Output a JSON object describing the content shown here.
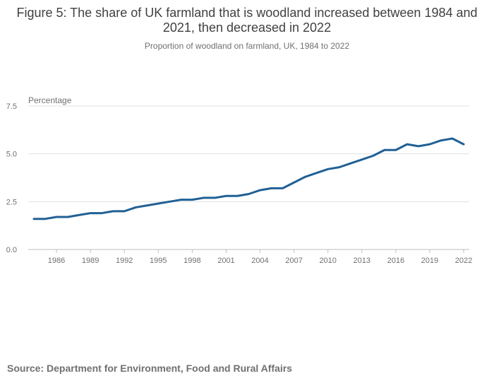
{
  "title": "Figure 5: The share of UK farmland that is woodland increased between 1984 and 2021, then decreased in 2022",
  "subtitle": "Proportion of woodland on farmland, UK, 1984 to 2022",
  "source": "Source: Department for Environment, Food and Rural Affairs",
  "colors": {
    "line": "#206095",
    "grid": "#e0e0e0",
    "axis": "#bebebe",
    "tick_text": "#707071"
  },
  "chart_data": {
    "type": "line",
    "title": "Figure 5: The share of UK farmland that is woodland increased between 1984 and 2021, then decreased in 2022",
    "subtitle": "Proportion of woodland on farmland, UK, 1984 to 2022",
    "ylabel": "Percentage",
    "xlabel": "",
    "ylim": [
      0,
      7.5
    ],
    "xlim": [
      1984,
      2022
    ],
    "yticks": [
      "0.0",
      "2.5",
      "5.0",
      "7.5"
    ],
    "xticks": [
      1986,
      1989,
      1992,
      1995,
      1998,
      2001,
      2004,
      2007,
      2010,
      2013,
      2016,
      2019,
      2022
    ],
    "grid": true,
    "series": [
      {
        "name": "Proportion of woodland on farmland",
        "x": [
          1984,
          1985,
          1986,
          1987,
          1988,
          1989,
          1990,
          1991,
          1992,
          1993,
          1994,
          1995,
          1996,
          1997,
          1998,
          1999,
          2000,
          2001,
          2002,
          2003,
          2004,
          2005,
          2006,
          2007,
          2008,
          2009,
          2010,
          2011,
          2012,
          2013,
          2014,
          2015,
          2016,
          2017,
          2018,
          2019,
          2020,
          2021,
          2022
        ],
        "values": [
          1.6,
          1.6,
          1.7,
          1.7,
          1.8,
          1.9,
          1.9,
          2.0,
          2.0,
          2.2,
          2.3,
          2.4,
          2.5,
          2.6,
          2.6,
          2.7,
          2.7,
          2.8,
          2.8,
          2.9,
          3.1,
          3.2,
          3.2,
          3.5,
          3.8,
          4.0,
          4.2,
          4.3,
          4.5,
          4.7,
          4.9,
          5.2,
          5.2,
          5.5,
          5.4,
          5.5,
          5.7,
          5.8,
          5.5
        ]
      }
    ]
  }
}
